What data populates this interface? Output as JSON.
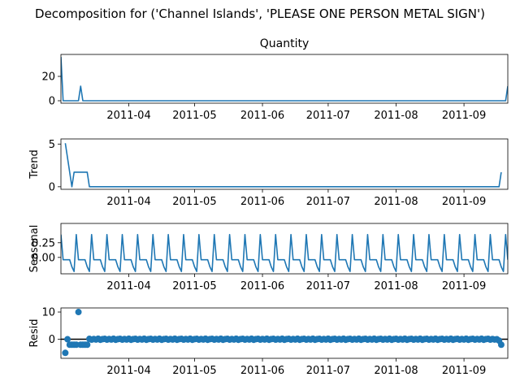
{
  "suptitle": "Decomposition for ('Channel Islands', 'PLEASE ONE PERSON METAL SIGN')",
  "colors": {
    "line": "#1f77b4",
    "zero": "#000000"
  },
  "x_axis": {
    "start": "2011-03-01",
    "end": "2011-09-21",
    "ticks": [
      "2011-04",
      "2011-05",
      "2011-06",
      "2011-07",
      "2011-08",
      "2011-09"
    ]
  },
  "chart_data": [
    {
      "type": "line",
      "title": "Quantity",
      "ylabel": "",
      "ylim": [
        -2,
        38
      ],
      "yticks": [
        0,
        20
      ],
      "series": [
        {
          "x": [
            "2011-03-01",
            "2011-03-02",
            "2011-03-08",
            "2011-03-09",
            "2011-03-10",
            "2011-03-11",
            "2011-09-19",
            "2011-09-20",
            "2011-09-21"
          ],
          "y": [
            36,
            0,
            0,
            0,
            12,
            0,
            0,
            0,
            12
          ]
        }
      ]
    },
    {
      "type": "line",
      "title": "",
      "ylabel": "Trend",
      "ylim": [
        -0.3,
        5.6
      ],
      "yticks": [
        0,
        5
      ],
      "series": [
        {
          "x": [
            "2011-03-03",
            "2011-03-06",
            "2011-03-07",
            "2011-03-13",
            "2011-03-14",
            "2011-09-17",
            "2011-09-18"
          ],
          "y": [
            5.1,
            0,
            1.7,
            1.7,
            0,
            0,
            1.7
          ]
        }
      ]
    },
    {
      "type": "line",
      "title": "",
      "ylabel": "Seasonal",
      "ylim": [
        -0.28,
        0.58
      ],
      "yticks": [
        0,
        0.25
      ],
      "yticklabels": [
        "0.00",
        "0.25"
      ],
      "seasonal": {
        "period_days": 7,
        "start": "2011-03-01",
        "pattern": [
          0.39,
          -0.04,
          -0.04,
          -0.04,
          -0.04,
          -0.16,
          -0.24
        ]
      }
    },
    {
      "type": "scatter",
      "title": "",
      "ylabel": "Resid",
      "ylim": [
        -7,
        11.5
      ],
      "yticks": [
        0,
        10
      ],
      "zero_line": true,
      "outliers": [
        {
          "x": "2011-03-03",
          "y": -5.0
        },
        {
          "x": "2011-03-04",
          "y": 0.0
        },
        {
          "x": "2011-03-05",
          "y": -2.0
        },
        {
          "x": "2011-03-06",
          "y": -2.0
        },
        {
          "x": "2011-03-07",
          "y": -2.0
        },
        {
          "x": "2011-03-08",
          "y": -2.0
        },
        {
          "x": "2011-03-09",
          "y": 10.0
        },
        {
          "x": "2011-03-10",
          "y": -2.0
        },
        {
          "x": "2011-03-11",
          "y": -2.0
        },
        {
          "x": "2011-03-12",
          "y": -2.0
        },
        {
          "x": "2011-03-13",
          "y": -2.0
        },
        {
          "x": "2011-09-16",
          "y": 0.0
        },
        {
          "x": "2011-09-17",
          "y": -0.5
        },
        {
          "x": "2011-09-18",
          "y": -2.0
        }
      ],
      "rest_range": [
        "2011-03-14",
        "2011-09-15"
      ],
      "rest_pattern": [
        0.15,
        -0.15,
        0.1,
        -0.1,
        0.2,
        -0.2,
        0.05
      ]
    }
  ]
}
